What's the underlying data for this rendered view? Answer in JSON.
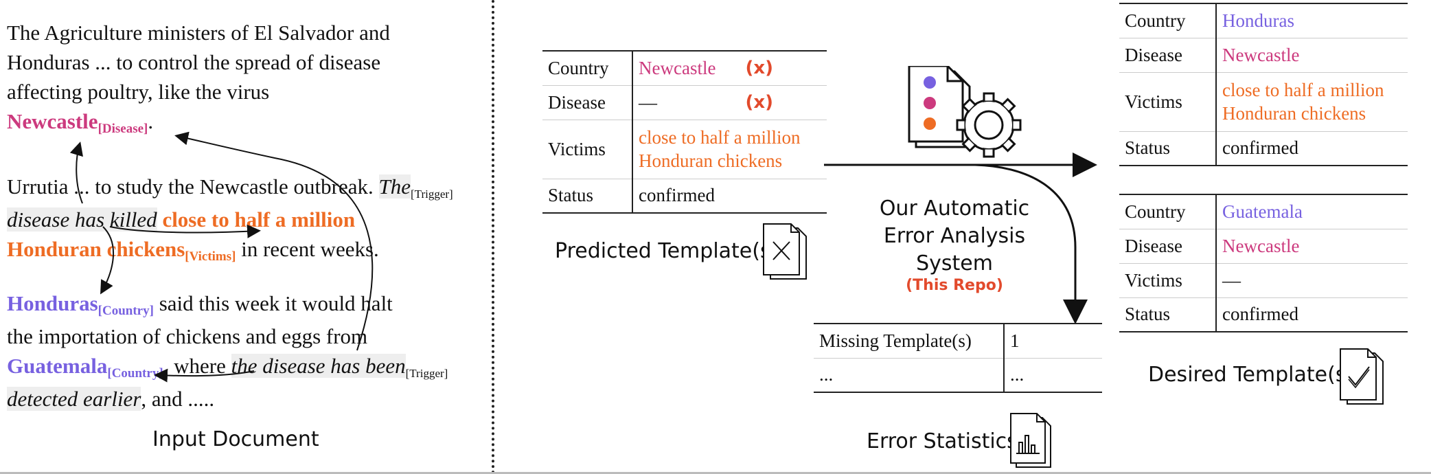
{
  "document": {
    "caption": "Input Document",
    "line1": "The Agriculture ministers of El Salvador and",
    "line2": "Honduras ... to control the spread of disease",
    "line3": "affecting poultry, like the virus",
    "newcastle": "Newcastle",
    "disease_tag": "[Disease]",
    "period": ".",
    "line5a": "Urrutia ... to study the Newcastle outbreak. ",
    "trigger1a": "The",
    "trigger_tag": "[Trigger]",
    "trigger1b": "disease has killed",
    "victims1": "close to half a million",
    "victims2": "Honduran chickens",
    "victims_tag": "[Victims]",
    "line7b": " in recent weeks.",
    "honduras": "Honduras",
    "country_tag": "[Country]",
    "line8b": " said this week it would halt",
    "line9": "the importation of chickens and eggs from",
    "guatemala": "Guatemala",
    "line10b": ", where ",
    "trigger2a": "the disease has been",
    "trigger2b": "detected earlier",
    "line11b": ", and ....."
  },
  "predicted": {
    "caption": "Predicted Template(s)",
    "rows": [
      {
        "key": "Country",
        "value": "Newcastle",
        "mark": "(x)"
      },
      {
        "key": "Disease",
        "value": "—",
        "mark": "(x)"
      },
      {
        "key": "Victims",
        "value1": "close to half a million",
        "value2": "Honduran chickens"
      },
      {
        "key": "Status",
        "value": "confirmed"
      }
    ]
  },
  "system": {
    "line1": "Our Automatic",
    "line2": "Error Analysis System",
    "repo": "(This Repo)"
  },
  "stats": {
    "caption": "Error Statistics",
    "rows": [
      {
        "key": "Missing Template(s)",
        "value": "1"
      },
      {
        "key": "...",
        "value": "..."
      }
    ]
  },
  "desired": {
    "caption": "Desired Template(s)",
    "t1": [
      {
        "key": "Country",
        "value": "Honduras"
      },
      {
        "key": "Disease",
        "value": "Newcastle"
      },
      {
        "key": "Victims",
        "value1": "close to half a million",
        "value2": "Honduran chickens"
      },
      {
        "key": "Status",
        "value": "confirmed"
      }
    ],
    "t2": [
      {
        "key": "Country",
        "value": "Guatemala"
      },
      {
        "key": "Disease",
        "value": "Newcastle"
      },
      {
        "key": "Victims",
        "value": "—"
      },
      {
        "key": "Status",
        "value": "confirmed"
      }
    ]
  },
  "colors": {
    "disease": "#cc3a7e",
    "victims": "#ee6c24",
    "country": "#7761e0",
    "error": "#e24a2c"
  },
  "icons": [
    "file-cross-icon",
    "file-gear-icon",
    "file-chart-icon",
    "file-check-icon"
  ]
}
